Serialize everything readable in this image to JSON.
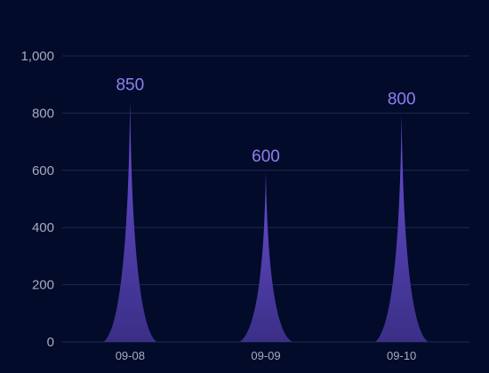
{
  "chart_data": {
    "type": "bar",
    "bar_shape": "pictorial-spike",
    "categories": [
      "09-08",
      "09-09",
      "09-10"
    ],
    "values": [
      850,
      600,
      800
    ],
    "data_labels": [
      "850",
      "600",
      "800"
    ],
    "y_ticks": [
      0,
      200,
      400,
      600,
      800,
      1000
    ],
    "y_tick_labels": [
      "0",
      "200",
      "400",
      "600",
      "800",
      "1,000"
    ],
    "ylim": [
      0,
      1000
    ],
    "grid": true,
    "legend": "none",
    "title": "",
    "xlabel": "",
    "ylabel": "",
    "colors": {
      "background": "#020b2a",
      "grid": "#1e2a4d",
      "axis_text": "#a5acbf",
      "data_label": "#8f7ff0",
      "spike_top": "#6a4fd6",
      "spike_bottom": "#3a2f86"
    }
  }
}
